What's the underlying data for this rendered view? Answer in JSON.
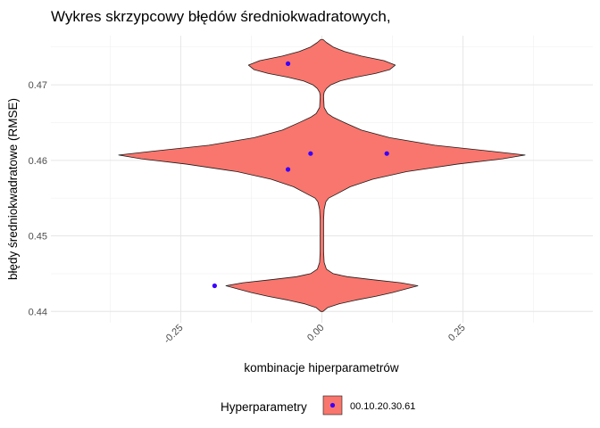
{
  "chart_data": {
    "type": "violin",
    "title": "Wykres skrzypcowy błędów średniokwadratowych,",
    "xlabel": "kombinacje hiperparametrów",
    "ylabel": "błędy średniokwadratowe (RMSE)",
    "xlim": [
      -0.48,
      0.48
    ],
    "ylim": [
      0.4385,
      0.4765
    ],
    "x_ticks": [
      -0.25,
      0.0,
      0.25
    ],
    "x_tick_labels": [
      "-0.25",
      "0.00",
      "0.25"
    ],
    "x_ticks_rotated": true,
    "y_ticks": [
      0.44,
      0.45,
      0.46,
      0.47
    ],
    "y_tick_labels": [
      "0.44",
      "0.45",
      "0.46",
      "0.47"
    ],
    "grid": true,
    "legend": {
      "title": "Hyperparametry",
      "placement": "bottom",
      "entries": [
        {
          "label": "00.10.20.30.61"
        }
      ]
    },
    "series": [
      {
        "name": "00.10.20.30.61",
        "fill_color": "#F8766D",
        "outline_color": "#1a1a1a",
        "point_color": "#3B00FF",
        "violin_center_x": 0.0,
        "density_profile": [
          [
            0.44,
            0.002
          ],
          [
            0.4405,
            0.01
          ],
          [
            0.441,
            0.03
          ],
          [
            0.4415,
            0.06
          ],
          [
            0.442,
            0.095
          ],
          [
            0.4425,
            0.125
          ],
          [
            0.443,
            0.15
          ],
          [
            0.4434,
            0.17
          ],
          [
            0.4438,
            0.14
          ],
          [
            0.4442,
            0.09
          ],
          [
            0.4446,
            0.045
          ],
          [
            0.445,
            0.02
          ],
          [
            0.4456,
            0.008
          ],
          [
            0.4465,
            0.004
          ],
          [
            0.448,
            0.003
          ],
          [
            0.45,
            0.003
          ],
          [
            0.452,
            0.003
          ],
          [
            0.4535,
            0.004
          ],
          [
            0.4545,
            0.007
          ],
          [
            0.455,
            0.012
          ],
          [
            0.4555,
            0.025
          ],
          [
            0.4565,
            0.05
          ],
          [
            0.4575,
            0.09
          ],
          [
            0.4585,
            0.15
          ],
          [
            0.4595,
            0.24
          ],
          [
            0.4602,
            0.32
          ],
          [
            0.4607,
            0.36
          ],
          [
            0.4612,
            0.3
          ],
          [
            0.462,
            0.2
          ],
          [
            0.463,
            0.12
          ],
          [
            0.464,
            0.07
          ],
          [
            0.465,
            0.04
          ],
          [
            0.4657,
            0.02
          ],
          [
            0.4662,
            0.01
          ],
          [
            0.467,
            0.004
          ],
          [
            0.4685,
            0.003
          ],
          [
            0.469,
            0.004
          ],
          [
            0.4695,
            0.008
          ],
          [
            0.47,
            0.016
          ],
          [
            0.4705,
            0.032
          ],
          [
            0.471,
            0.06
          ],
          [
            0.4715,
            0.095
          ],
          [
            0.472,
            0.12
          ],
          [
            0.4726,
            0.13
          ],
          [
            0.4732,
            0.11
          ],
          [
            0.4738,
            0.07
          ],
          [
            0.4744,
            0.04
          ],
          [
            0.475,
            0.02
          ],
          [
            0.4756,
            0.008
          ],
          [
            0.476,
            0.002
          ]
        ],
        "points": [
          {
            "x": -0.19,
            "y": 0.4434
          },
          {
            "x": -0.06,
            "y": 0.4728
          },
          {
            "x": -0.06,
            "y": 0.4588
          },
          {
            "x": -0.02,
            "y": 0.4609
          },
          {
            "x": 0.115,
            "y": 0.4609
          }
        ]
      }
    ]
  }
}
